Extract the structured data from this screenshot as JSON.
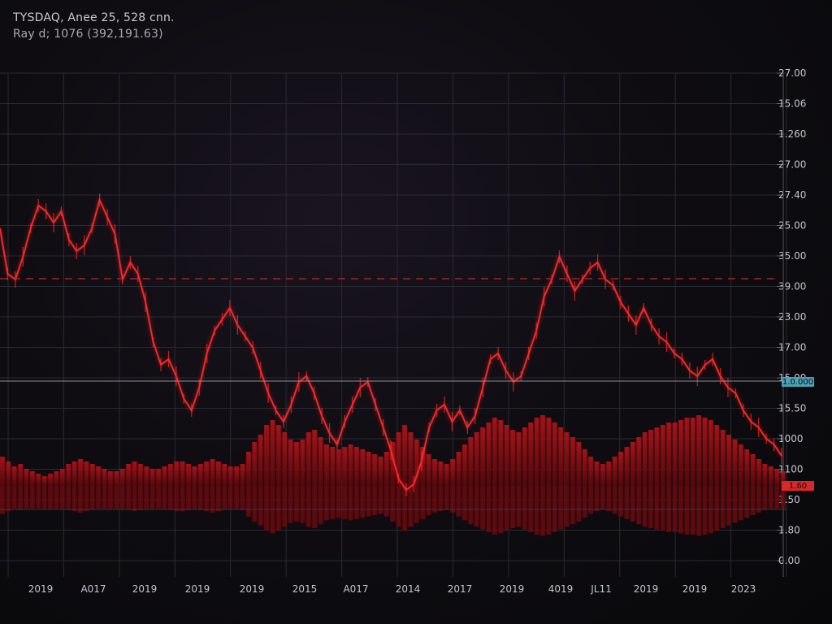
{
  "header": {
    "line1": "TYSDAQ, Anee 25, 528 cnn.",
    "line2": "Ray d; 1076 (392,191.63)"
  },
  "colors": {
    "background": "#0b0b0e",
    "grid": "#2a2a33",
    "price_line": "#ff2a2a",
    "volume": "#8a0f14",
    "level_line_dashed": "#c0282a",
    "level_line_solid": "#8f8f96",
    "badge_blue": "#4aa3b8",
    "badge_red": "#d9282a"
  },
  "chart_data": {
    "type": "line",
    "title": "",
    "xlabel": "",
    "ylabel": "",
    "y_axis_labels": [
      "27.00",
      "15.06",
      "1.260",
      "27.00",
      "27.40",
      "25.00",
      "35.00",
      "39.00",
      "23.00",
      "17.00",
      "15.00",
      "15.50",
      "1000",
      "1100",
      "1.50",
      "1.80",
      "0.00"
    ],
    "x_axis_labels": [
      "2019",
      "A017",
      "2019",
      "2019",
      "2019",
      "2015",
      "A017",
      "2014",
      "2017",
      "2019",
      "4019",
      "JL11",
      "2019",
      "2019",
      "2023"
    ],
    "price_series": [
      [
        0,
        38.5
      ],
      [
        2,
        34.5
      ],
      [
        4,
        34.0
      ],
      [
        6,
        36.0
      ],
      [
        8,
        38.5
      ],
      [
        10,
        40.5
      ],
      [
        12,
        40.0
      ],
      [
        14,
        39.0
      ],
      [
        16,
        40.0
      ],
      [
        18,
        37.5
      ],
      [
        20,
        36.5
      ],
      [
        22,
        37.0
      ],
      [
        24,
        38.5
      ],
      [
        26,
        41.0
      ],
      [
        28,
        39.5
      ],
      [
        30,
        38.0
      ],
      [
        32,
        34.0
      ],
      [
        34,
        35.5
      ],
      [
        36,
        34.5
      ],
      [
        38,
        32.0
      ],
      [
        40,
        28.5
      ],
      [
        42,
        26.5
      ],
      [
        44,
        27.0
      ],
      [
        46,
        25.5
      ],
      [
        48,
        23.5
      ],
      [
        50,
        22.5
      ],
      [
        52,
        24.5
      ],
      [
        54,
        27.5
      ],
      [
        56,
        29.5
      ],
      [
        58,
        30.5
      ],
      [
        60,
        31.5
      ],
      [
        62,
        30.0
      ],
      [
        64,
        29.0
      ],
      [
        66,
        28.0
      ],
      [
        68,
        26.0
      ],
      [
        70,
        24.0
      ],
      [
        72,
        22.5
      ],
      [
        74,
        21.5
      ],
      [
        76,
        23.0
      ],
      [
        78,
        25.0
      ],
      [
        80,
        25.5
      ],
      [
        82,
        24.0
      ],
      [
        84,
        22.0
      ],
      [
        86,
        20.5
      ],
      [
        88,
        19.5
      ],
      [
        90,
        21.5
      ],
      [
        92,
        23.0
      ],
      [
        94,
        24.5
      ],
      [
        96,
        25.0
      ],
      [
        98,
        23.0
      ],
      [
        100,
        21.0
      ],
      [
        102,
        19.0
      ],
      [
        104,
        16.5
      ],
      [
        106,
        15.5
      ],
      [
        108,
        16.0
      ],
      [
        110,
        18.0
      ],
      [
        112,
        21.0
      ],
      [
        114,
        22.5
      ],
      [
        116,
        23.0
      ],
      [
        118,
        21.5
      ],
      [
        120,
        22.5
      ],
      [
        122,
        21.0
      ],
      [
        124,
        22.0
      ],
      [
        126,
        24.5
      ],
      [
        128,
        27.0
      ],
      [
        130,
        27.5
      ],
      [
        132,
        26.0
      ],
      [
        134,
        25.0
      ],
      [
        136,
        25.5
      ],
      [
        138,
        27.5
      ],
      [
        140,
        29.5
      ],
      [
        142,
        32.5
      ],
      [
        144,
        34.0
      ],
      [
        146,
        36.0
      ],
      [
        148,
        34.5
      ],
      [
        150,
        33.0
      ],
      [
        152,
        34.0
      ],
      [
        154,
        35.0
      ],
      [
        156,
        35.5
      ],
      [
        158,
        34.0
      ],
      [
        160,
        33.5
      ],
      [
        162,
        32.0
      ],
      [
        164,
        31.0
      ],
      [
        166,
        30.0
      ],
      [
        168,
        31.5
      ],
      [
        170,
        30.0
      ],
      [
        172,
        29.0
      ],
      [
        174,
        28.5
      ],
      [
        176,
        27.5
      ],
      [
        178,
        27.0
      ],
      [
        180,
        26.0
      ],
      [
        182,
        25.5
      ],
      [
        184,
        26.5
      ],
      [
        186,
        27.0
      ],
      [
        188,
        25.5
      ],
      [
        190,
        24.5
      ],
      [
        192,
        24.0
      ],
      [
        194,
        22.5
      ],
      [
        196,
        21.5
      ],
      [
        198,
        21.0
      ],
      [
        200,
        20.0
      ],
      [
        202,
        19.5
      ],
      [
        204,
        18.5
      ]
    ],
    "volume_series": [
      1.2,
      1.0,
      0.8,
      0.9,
      0.7,
      0.6,
      0.5,
      0.4,
      0.5,
      0.6,
      0.7,
      0.9,
      1.0,
      1.1,
      1.0,
      0.9,
      0.8,
      0.7,
      0.6,
      0.6,
      0.7,
      0.9,
      1.0,
      0.9,
      0.8,
      0.7,
      0.7,
      0.8,
      0.9,
      1.0,
      1.0,
      0.9,
      0.8,
      0.9,
      1.0,
      1.1,
      1.0,
      0.9,
      0.8,
      0.8,
      0.9,
      1.4,
      1.8,
      2.1,
      2.5,
      2.7,
      2.5,
      2.2,
      1.9,
      1.8,
      1.9,
      2.2,
      2.3,
      2.0,
      1.7,
      1.6,
      1.5,
      1.6,
      1.7,
      1.6,
      1.5,
      1.4,
      1.3,
      1.2,
      1.4,
      1.8,
      2.2,
      2.5,
      2.2,
      1.9,
      1.6,
      1.3,
      1.1,
      1.0,
      0.9,
      1.1,
      1.4,
      1.7,
      2.0,
      2.2,
      2.4,
      2.6,
      2.8,
      2.7,
      2.5,
      2.3,
      2.2,
      2.4,
      2.6,
      2.8,
      2.9,
      2.8,
      2.6,
      2.4,
      2.2,
      2.0,
      1.8,
      1.5,
      1.2,
      1.0,
      0.9,
      1.0,
      1.2,
      1.4,
      1.6,
      1.8,
      2.0,
      2.2,
      2.3,
      2.4,
      2.5,
      2.6,
      2.6,
      2.7,
      2.8,
      2.8,
      2.9,
      2.8,
      2.7,
      2.5,
      2.3,
      2.1,
      1.9,
      1.7,
      1.5,
      1.3,
      1.1,
      0.9,
      0.8,
      0.7,
      0.6
    ],
    "dashed_level_label": "39.00",
    "solid_level_label": "15.50",
    "badge_blue_text": "1.0.000",
    "badge_red_text": "1.60"
  }
}
